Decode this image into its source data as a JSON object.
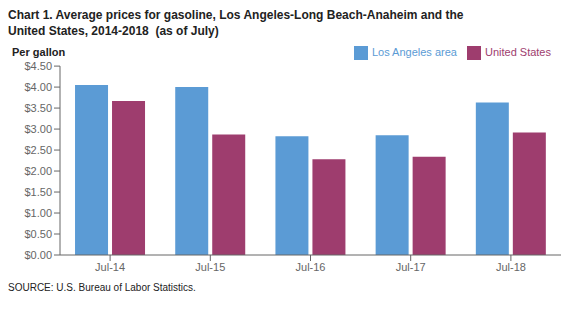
{
  "chart_data": {
    "type": "bar",
    "title": "Chart 1. Average prices for gasoline, Los Angeles-Long Beach-Anaheim and the\nUnited States, 2014-2018  (as of July)",
    "ylabel": "Per gallon",
    "annotations": [
      "SOURCE: U.S. Bureau of Labor Statistics."
    ],
    "categories": [
      "Jul-14",
      "Jul-15",
      "Jul-16",
      "Jul-17",
      "Jul-18"
    ],
    "series": [
      {
        "name": "Los Angeles area",
        "color": "#5b9bd5",
        "values": [
          4.05,
          4.0,
          2.83,
          2.85,
          3.63
        ]
      },
      {
        "name": "United States",
        "color": "#9e3d6e",
        "values": [
          3.67,
          2.87,
          2.28,
          2.34,
          2.92
        ]
      }
    ],
    "ylim": [
      0,
      4.5
    ],
    "yticks": [
      {
        "value": 0.0,
        "label": "$0.00"
      },
      {
        "value": 0.5,
        "label": "$0.50"
      },
      {
        "value": 1.0,
        "label": "$1.00"
      },
      {
        "value": 1.5,
        "label": "$1.50"
      },
      {
        "value": 2.0,
        "label": "$2.00"
      },
      {
        "value": 2.5,
        "label": "$2.50"
      },
      {
        "value": 3.0,
        "label": "$3.00"
      },
      {
        "value": 3.5,
        "label": "$3.50"
      },
      {
        "value": 4.0,
        "label": "$4.00"
      },
      {
        "value": 4.5,
        "label": "$4.50"
      }
    ],
    "grid": false,
    "legend": "upper right"
  }
}
